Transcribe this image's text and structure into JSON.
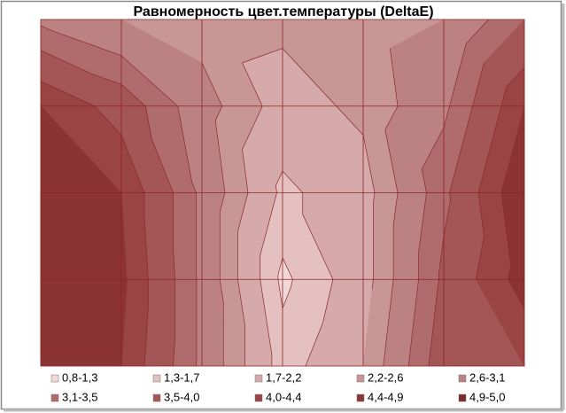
{
  "chart_data": {
    "type": "contour",
    "title": "Равномерность цвет.температуры (DeltaE)",
    "z": [
      [
        3.0,
        2.6,
        2.4,
        2.3,
        2.4,
        2.6,
        3.5
      ],
      [
        4.4,
        3.8,
        2.8,
        2.0,
        2.3,
        3.0,
        4.4
      ],
      [
        4.9,
        4.4,
        3.0,
        1.6,
        2.0,
        3.4,
        4.8
      ],
      [
        4.9,
        4.5,
        3.0,
        1.2,
        2.0,
        3.6,
        4.6
      ],
      [
        4.9,
        4.4,
        3.0,
        1.5,
        2.2,
        3.8,
        4.0
      ]
    ],
    "levels": [
      {
        "label": "0,8-1,3",
        "from": 0.8,
        "to": 1.3,
        "color": "#f0d8d8"
      },
      {
        "label": "1,3-1,7",
        "from": 1.3,
        "to": 1.7,
        "color": "#e4c0c0"
      },
      {
        "label": "1,7-2,2",
        "from": 1.7,
        "to": 2.2,
        "color": "#d6aaaa"
      },
      {
        "label": "2,2-2,6",
        "from": 2.2,
        "to": 2.6,
        "color": "#c99696"
      },
      {
        "label": "2,6-3,1",
        "from": 2.6,
        "to": 3.1,
        "color": "#bc8282"
      },
      {
        "label": "3,1-3,5",
        "from": 3.1,
        "to": 3.5,
        "color": "#b06c6c"
      },
      {
        "label": "3,5-4,0",
        "from": 3.5,
        "to": 4.0,
        "color": "#a45656"
      },
      {
        "label": "4,0-4,4",
        "from": 4.0,
        "to": 4.4,
        "color": "#9a4444"
      },
      {
        "label": "4,4-4,9",
        "from": 4.4,
        "to": 4.9,
        "color": "#8c3434"
      },
      {
        "label": "4,9-5,0",
        "from": 4.9,
        "to": 5.0,
        "color": "#7c2a2a"
      }
    ]
  }
}
